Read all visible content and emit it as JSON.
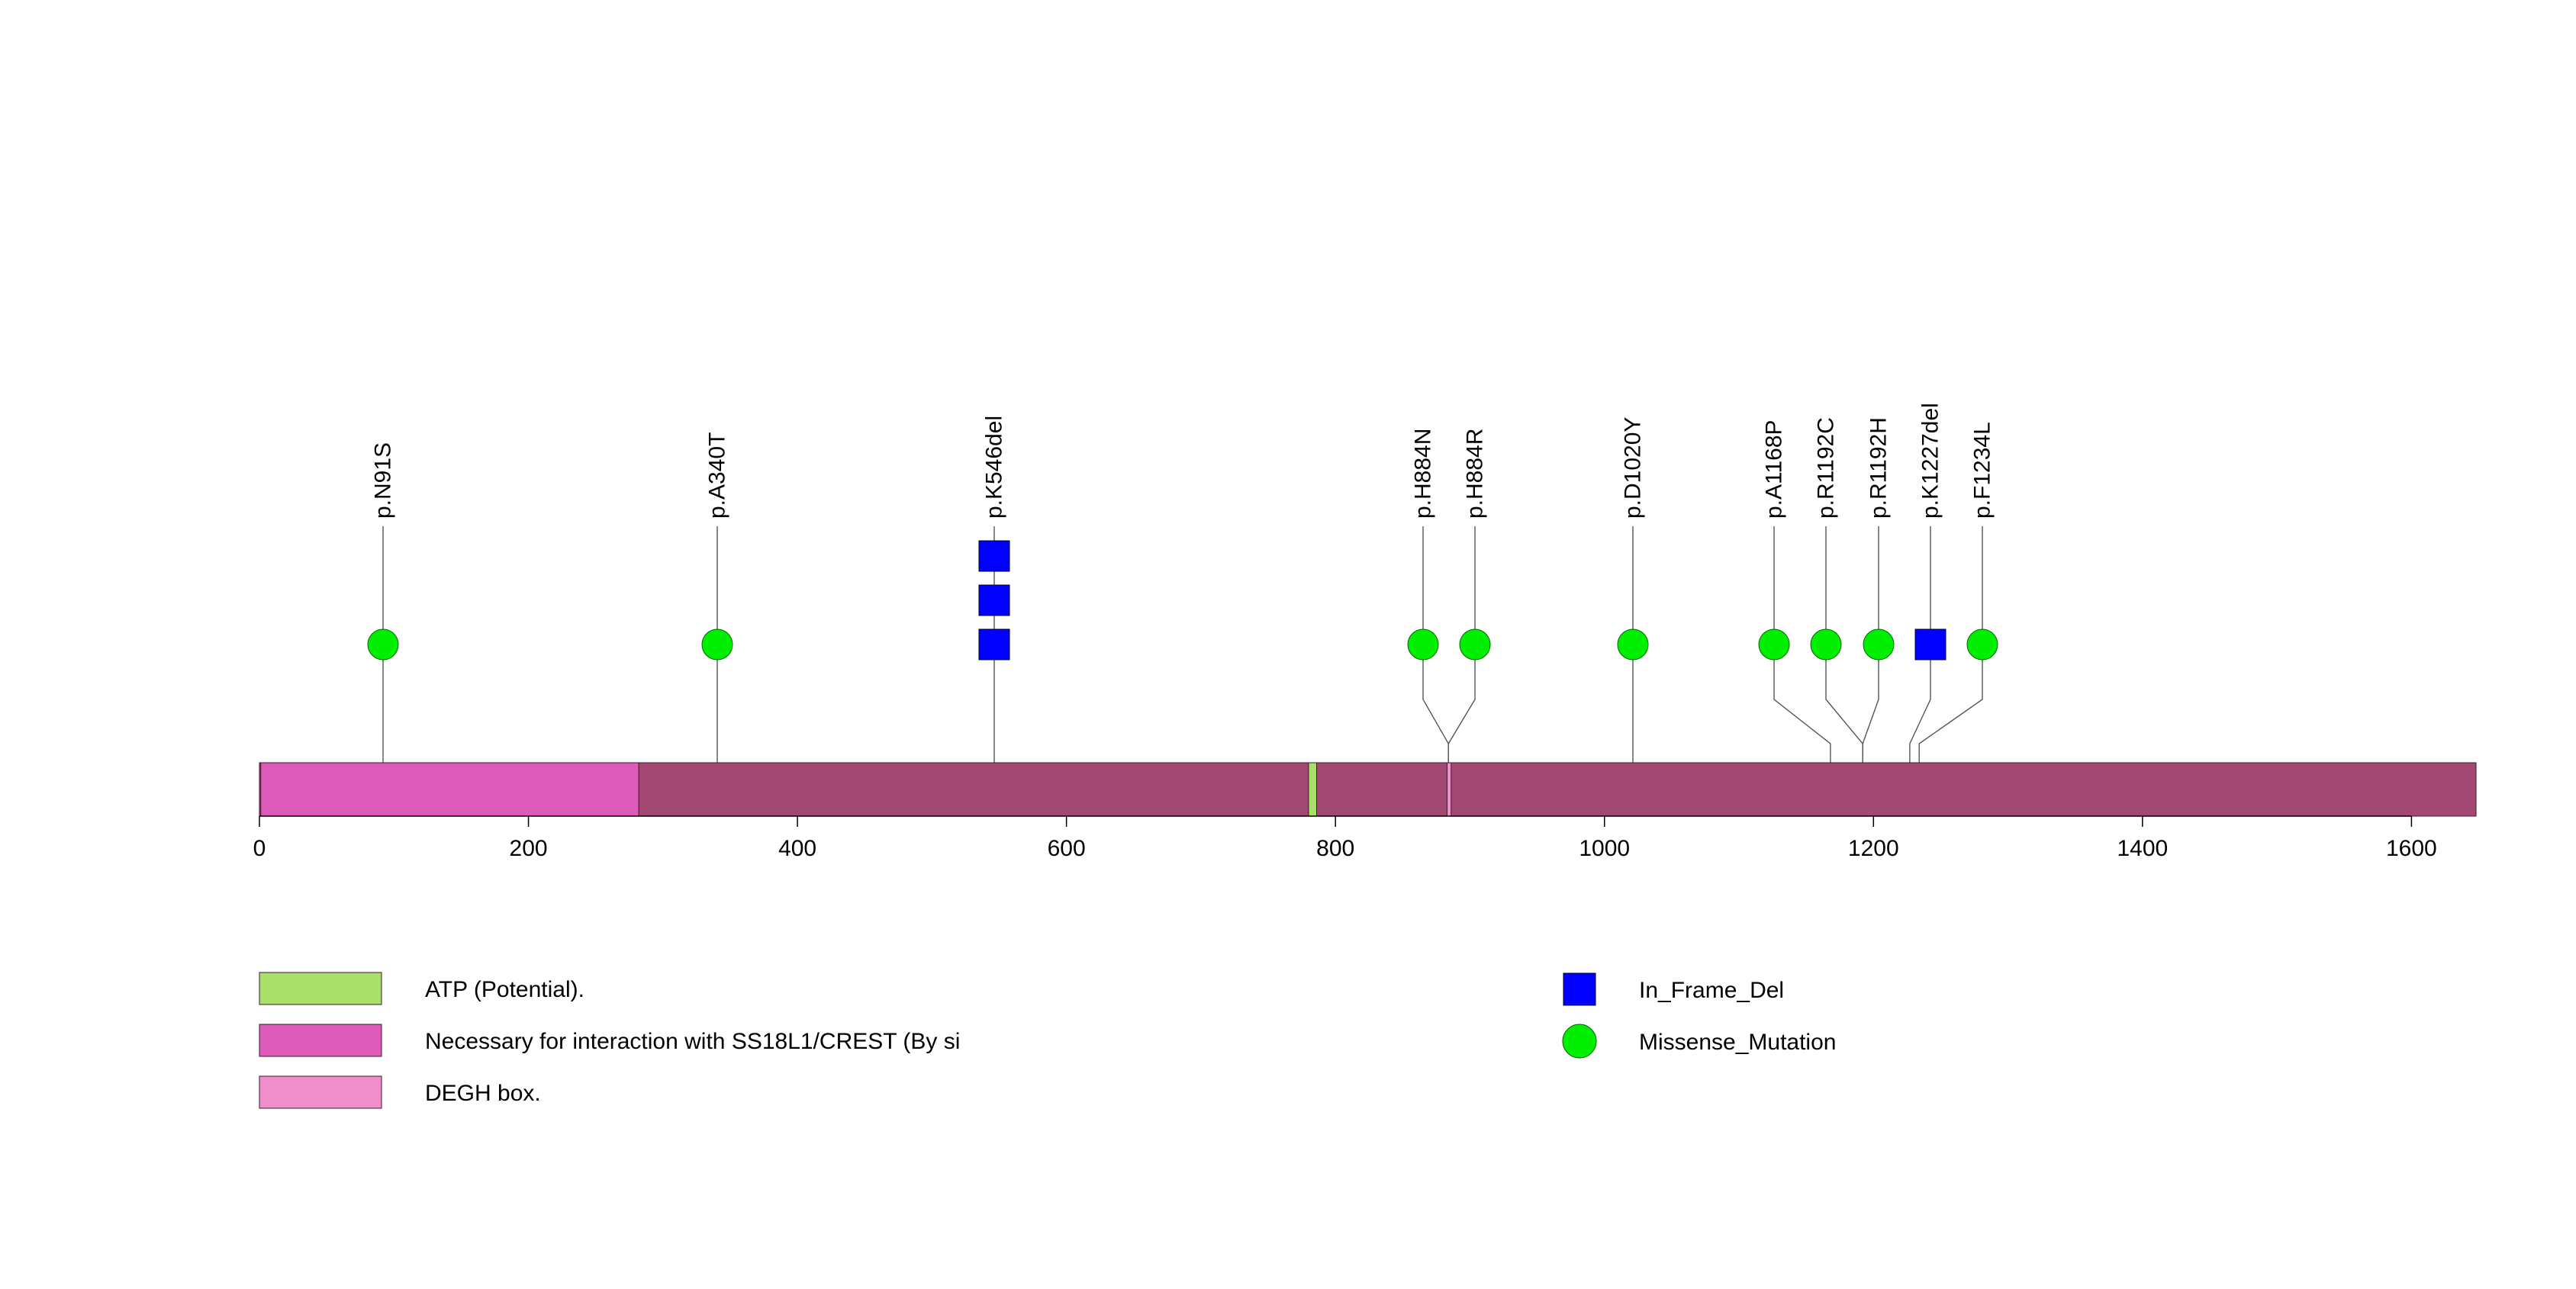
{
  "chart_data": {
    "type": "lollipop",
    "protein_length": 1648,
    "xlim": [
      0,
      1648
    ],
    "x_ticks": [
      "0",
      "200",
      "400",
      "600",
      "800",
      "1000",
      "1200",
      "1400",
      "1600"
    ],
    "colors": {
      "backbone": "#a34872",
      "ss18l1_region": "#df5bb9",
      "degh_box": "#f08fcc",
      "atp": "#a8e06a",
      "in_frame_del": "#0000ff",
      "missense": "#00ee00"
    },
    "domains": [
      {
        "name": "Necessary for interaction with SS18L1/CREST (By si",
        "start": 1,
        "end": 282,
        "color": "#df5bb9"
      },
      {
        "name": "ATP (Potential).",
        "start": 780,
        "end": 786,
        "color": "#a8e06a"
      },
      {
        "name": "DEGH box.",
        "start": 883,
        "end": 886,
        "color": "#f08fcc"
      }
    ],
    "mutations": [
      {
        "label": "p.N91S",
        "position": 91,
        "type": "Missense_Mutation",
        "count": 1
      },
      {
        "label": "p.A340T",
        "position": 340,
        "type": "Missense_Mutation",
        "count": 1
      },
      {
        "label": "p.K546del",
        "position": 546,
        "type": "In_Frame_Del",
        "count": 3
      },
      {
        "label": "p.H884N",
        "position": 884,
        "type": "Missense_Mutation",
        "count": 1
      },
      {
        "label": "p.H884R",
        "position": 884,
        "type": "Missense_Mutation",
        "count": 1
      },
      {
        "label": "p.D1020Y",
        "position": 1020,
        "type": "Missense_Mutation",
        "count": 1
      },
      {
        "label": "p.A1168P",
        "position": 1168,
        "type": "Missense_Mutation",
        "count": 1
      },
      {
        "label": "p.R1192C",
        "position": 1192,
        "type": "Missense_Mutation",
        "count": 1
      },
      {
        "label": "p.R1192H",
        "position": 1192,
        "type": "Missense_Mutation",
        "count": 1
      },
      {
        "label": "p.K1227del",
        "position": 1227,
        "type": "In_Frame_Del",
        "count": 1
      },
      {
        "label": "p.F1234L",
        "position": 1234,
        "type": "Missense_Mutation",
        "count": 1
      }
    ],
    "legend_domains": [
      {
        "label": "ATP (Potential).",
        "color": "#a8e06a"
      },
      {
        "label": "Necessary for interaction with SS18L1/CREST (By si",
        "color": "#df5bb9"
      },
      {
        "label": "DEGH box.",
        "color": "#f08fcc"
      }
    ],
    "legend_mutations": [
      {
        "label": "In_Frame_Del",
        "shape": "square",
        "color": "#0000ff"
      },
      {
        "label": "Missense_Mutation",
        "shape": "circle",
        "color": "#00ee00"
      }
    ]
  }
}
